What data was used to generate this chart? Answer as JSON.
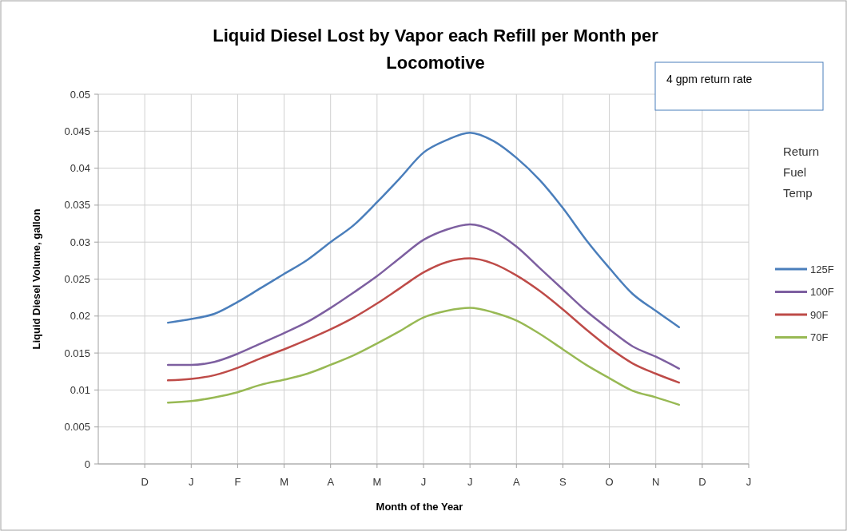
{
  "chart_data": {
    "type": "line",
    "title": "Liquid Diesel Lost by Vapor each Refill per Month per Locomotive",
    "xlabel": "Month of the Year",
    "ylabel": "Liquid Diesel Volume, gallon",
    "legend_title": "Return Fuel Temp",
    "annotations": [
      "4 gpm return rate"
    ],
    "categories": [
      null,
      null,
      "D",
      null,
      "J",
      null,
      "F",
      null,
      "M",
      null,
      "A",
      null,
      "M",
      null,
      "J",
      null,
      "J",
      null,
      "A",
      null,
      "S",
      null,
      "O",
      null,
      "N",
      null,
      "D",
      null,
      "J"
    ],
    "series": [
      {
        "name": "125F",
        "color": "#4a7ebb",
        "values": [
          null,
          null,
          null,
          0.0191,
          0.0196,
          0.0203,
          0.0219,
          0.0238,
          0.0257,
          0.0276,
          0.03,
          0.0323,
          0.0354,
          0.0387,
          0.0421,
          0.0438,
          0.0448,
          0.0437,
          0.0414,
          0.0384,
          0.0346,
          0.0303,
          0.0265,
          0.023,
          0.0207,
          0.0185,
          null,
          null,
          null
        ]
      },
      {
        "name": "100F",
        "color": "#7d5fa0",
        "values": [
          null,
          null,
          null,
          0.0134,
          0.0134,
          0.0138,
          0.0149,
          0.0163,
          0.0177,
          0.0192,
          0.0211,
          0.0232,
          0.0254,
          0.0279,
          0.0303,
          0.0317,
          0.0324,
          0.0315,
          0.0294,
          0.0265,
          0.0236,
          0.0207,
          0.0182,
          0.0159,
          0.0145,
          0.0129,
          null,
          null,
          null
        ]
      },
      {
        "name": "90F",
        "color": "#be4b48",
        "values": [
          null,
          null,
          null,
          0.0113,
          0.0115,
          0.012,
          0.013,
          0.0143,
          0.0155,
          0.0168,
          0.0182,
          0.0198,
          0.0217,
          0.0238,
          0.0259,
          0.0273,
          0.0278,
          0.0271,
          0.0255,
          0.0234,
          0.0209,
          0.0182,
          0.0157,
          0.0136,
          0.0122,
          0.011,
          null,
          null,
          null
        ]
      },
      {
        "name": "70F",
        "color": "#98b954",
        "values": [
          null,
          null,
          null,
          0.0083,
          0.0085,
          0.009,
          0.0097,
          0.0107,
          0.0114,
          0.0122,
          0.0134,
          0.0147,
          0.0163,
          0.018,
          0.0198,
          0.0207,
          0.0211,
          0.0205,
          0.0194,
          0.0176,
          0.0155,
          0.0134,
          0.0116,
          0.0099,
          0.009,
          0.008,
          null,
          null,
          null
        ]
      }
    ],
    "ylim": [
      0,
      0.05
    ],
    "yticks": [
      0,
      0.005,
      0.01,
      0.015,
      0.02,
      0.025,
      0.03,
      0.035,
      0.04,
      0.045,
      0.05
    ],
    "grid": true,
    "legend": "right",
    "marker": "none",
    "line_style": "solid"
  }
}
